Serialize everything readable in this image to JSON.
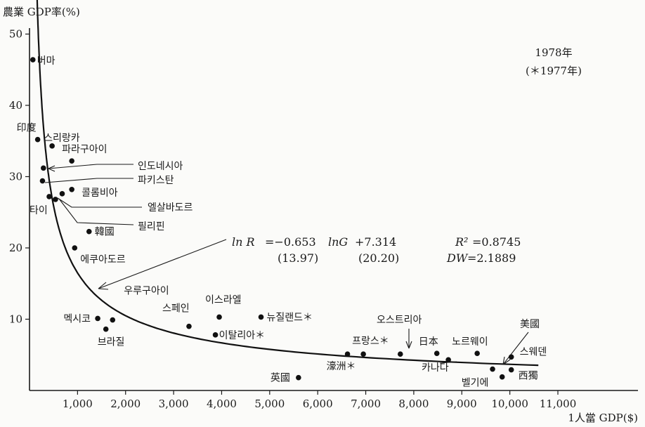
{
  "chart_data": {
    "type": "scatter",
    "ylabel": "農業 GDP率(%)",
    "xlabel": "1人當 GDP($)",
    "xlim": [
      0,
      11000
    ],
    "ylim": [
      0,
      52
    ],
    "x_ticks": [
      1000,
      2000,
      3000,
      4000,
      5000,
      6000,
      7000,
      8000,
      9000,
      10000,
      11000
    ],
    "x_tick_labels": [
      "1,000",
      "2,000",
      "3,000",
      "4,000",
      "5,000",
      "6,000",
      "7,000",
      "8,000",
      "9,000",
      "10,000",
      "11,000"
    ],
    "y_ticks": [
      10,
      20,
      30,
      40,
      50
    ],
    "y_tick_labels": [
      "10",
      "20",
      "30",
      "40",
      "50"
    ],
    "year_note": [
      "1978年",
      "(＊1977年)"
    ],
    "points": [
      {
        "label": "버마",
        "x": 70,
        "y": 46.4
      },
      {
        "label": "印度",
        "x": 170,
        "y": 35.2
      },
      {
        "label": "스리랑카",
        "x": 470,
        "y": 34.3
      },
      {
        "label": "파라구아이",
        "x": 880,
        "y": 32.2
      },
      {
        "label": "인도네시아",
        "x": 290,
        "y": 31.2
      },
      {
        "label": "파키스탄",
        "x": 270,
        "y": 29.4
      },
      {
        "label": "콜롬비아",
        "x": 880,
        "y": 28.2
      },
      {
        "label": "타이",
        "x": 410,
        "y": 27.2
      },
      {
        "label": "엘살바도르",
        "x": 680,
        "y": 27.6
      },
      {
        "label": "필리핀",
        "x": 540,
        "y": 26.8
      },
      {
        "label": "韓國",
        "x": 1240,
        "y": 22.3
      },
      {
        "label": "에쿠아도르",
        "x": 940,
        "y": 20.0
      },
      {
        "label": "우루구아이",
        "x": 1730,
        "y": 9.9
      },
      {
        "label": "멕시코",
        "x": 1420,
        "y": 10.1
      },
      {
        "label": "브라질",
        "x": 1590,
        "y": 8.6
      },
      {
        "label": "스페인",
        "x": 3320,
        "y": 9.0
      },
      {
        "label": "이스라엘",
        "x": 3950,
        "y": 10.3
      },
      {
        "label": "이탈리아＊",
        "x": 3870,
        "y": 7.8
      },
      {
        "label": "뉴질랜드＊",
        "x": 4820,
        "y": 10.3
      },
      {
        "label": "英國",
        "x": 5600,
        "y": 1.8
      },
      {
        "label": "濠洲＊",
        "x": 6620,
        "y": 5.1
      },
      {
        "label": "프랑스＊",
        "x": 6950,
        "y": 5.1
      },
      {
        "label": "오스트리아",
        "x": 7720,
        "y": 5.1
      },
      {
        "label": "日本",
        "x": 8480,
        "y": 5.2
      },
      {
        "label": "카나다",
        "x": 8720,
        "y": 4.3
      },
      {
        "label": "노르웨이",
        "x": 9320,
        "y": 5.2
      },
      {
        "label": "美國",
        "x": 9640,
        "y": 3.0
      },
      {
        "label": "벨기에",
        "x": 9840,
        "y": 1.9
      },
      {
        "label": "스웨덴",
        "x": 10030,
        "y": 4.7
      },
      {
        "label": "西獨",
        "x": 10030,
        "y": 2.9
      }
    ],
    "regression": {
      "line1_a": "ln R",
      "line1_b": "=−0.653",
      "line1_c": "lnG",
      "line1_d": "+7.314",
      "r2_sym": "R²",
      "r2_val": "=0.8745",
      "se1": "(13.97)",
      "se2": "(20.20)",
      "dw_sym": "DW",
      "dw_val": "=2.1889",
      "a": -0.653,
      "b": 7.314
    }
  }
}
